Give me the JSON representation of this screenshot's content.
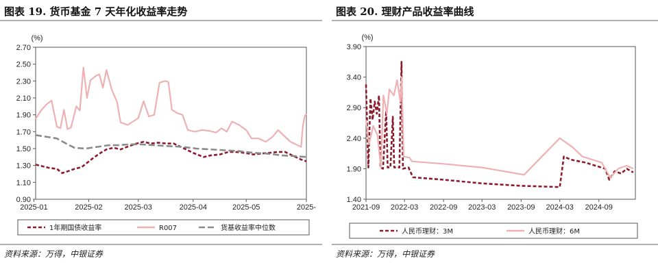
{
  "left": {
    "title": "图表 19. 货币基金 7 天年化收益率走势",
    "source": "资料来源：万得，中银证券",
    "chart_data": {
      "type": "line",
      "unit_label": "(%)",
      "ylim": [
        0.9,
        2.7
      ],
      "yticks": [
        "2.70",
        "2.50",
        "2.30",
        "2.10",
        "1.90",
        "1.70",
        "1.50",
        "1.30",
        "1.10",
        "0.90"
      ],
      "xlim": [
        "2025-01-02",
        "2025-06-04"
      ],
      "xticks": [
        "2025-01",
        "2025-02",
        "2025-03",
        "2025-04",
        "2025-05",
        "2025-"
      ],
      "legend_position": "bottom",
      "series": [
        {
          "name": "1年期国债收益率",
          "color": "#8b1a2b",
          "style": "dashed",
          "points": [
            [
              "2025-01-02",
              1.31
            ],
            [
              "2025-01-06",
              1.29
            ],
            [
              "2025-01-10",
              1.27
            ],
            [
              "2025-01-14",
              1.26
            ],
            [
              "2025-01-17",
              1.21
            ],
            [
              "2025-01-20",
              1.23
            ],
            [
              "2025-01-24",
              1.26
            ],
            [
              "2025-01-28",
              1.28
            ],
            [
              "2025-02-03",
              1.38
            ],
            [
              "2025-02-07",
              1.44
            ],
            [
              "2025-02-11",
              1.49
            ],
            [
              "2025-02-15",
              1.51
            ],
            [
              "2025-02-19",
              1.49
            ],
            [
              "2025-02-24",
              1.53
            ],
            [
              "2025-02-28",
              1.56
            ],
            [
              "2025-03-04",
              1.58
            ],
            [
              "2025-03-08",
              1.56
            ],
            [
              "2025-03-12",
              1.57
            ],
            [
              "2025-03-17",
              1.56
            ],
            [
              "2025-03-21",
              1.56
            ],
            [
              "2025-03-25",
              1.52
            ],
            [
              "2025-03-29",
              1.48
            ],
            [
              "2025-04-02",
              1.44
            ],
            [
              "2025-04-07",
              1.4
            ],
            [
              "2025-04-11",
              1.42
            ],
            [
              "2025-04-16",
              1.43
            ],
            [
              "2025-04-21",
              1.46
            ],
            [
              "2025-04-25",
              1.46
            ],
            [
              "2025-04-30",
              1.45
            ],
            [
              "2025-05-05",
              1.43
            ],
            [
              "2025-05-09",
              1.44
            ],
            [
              "2025-05-14",
              1.45
            ],
            [
              "2025-05-19",
              1.46
            ],
            [
              "2025-05-23",
              1.46
            ],
            [
              "2025-05-27",
              1.42
            ],
            [
              "2025-06-01",
              1.37
            ],
            [
              "2025-06-04",
              1.35
            ]
          ]
        },
        {
          "name": "R007",
          "color": "#eeb1b3",
          "style": "solid",
          "points": [
            [
              "2025-01-02",
              1.85
            ],
            [
              "2025-01-05",
              1.95
            ],
            [
              "2025-01-08",
              2.02
            ],
            [
              "2025-01-11",
              2.07
            ],
            [
              "2025-01-14",
              1.76
            ],
            [
              "2025-01-16",
              1.74
            ],
            [
              "2025-01-18",
              1.96
            ],
            [
              "2025-01-20",
              1.73
            ],
            [
              "2025-01-22",
              1.75
            ],
            [
              "2025-01-25",
              2.0
            ],
            [
              "2025-01-27",
              1.95
            ],
            [
              "2025-01-29",
              2.46
            ],
            [
              "2025-01-31",
              2.1
            ],
            [
              "2025-02-02",
              2.31
            ],
            [
              "2025-02-05",
              2.36
            ],
            [
              "2025-02-07",
              2.38
            ],
            [
              "2025-02-09",
              2.22
            ],
            [
              "2025-02-11",
              2.43
            ],
            [
              "2025-02-14",
              2.2
            ],
            [
              "2025-02-17",
              2.05
            ],
            [
              "2025-02-19",
              1.81
            ],
            [
              "2025-02-23",
              1.78
            ],
            [
              "2025-02-26",
              1.82
            ],
            [
              "2025-03-01",
              1.86
            ],
            [
              "2025-03-04",
              2.06
            ],
            [
              "2025-03-07",
              1.88
            ],
            [
              "2025-03-10",
              1.9
            ],
            [
              "2025-03-13",
              2.28
            ],
            [
              "2025-03-16",
              2.3
            ],
            [
              "2025-03-18",
              2.29
            ],
            [
              "2025-03-20",
              1.96
            ],
            [
              "2025-03-23",
              1.92
            ],
            [
              "2025-03-26",
              1.9
            ],
            [
              "2025-03-29",
              1.72
            ],
            [
              "2025-04-02",
              1.7
            ],
            [
              "2025-04-06",
              1.72
            ],
            [
              "2025-04-10",
              1.71
            ],
            [
              "2025-04-14",
              1.69
            ],
            [
              "2025-04-17",
              1.74
            ],
            [
              "2025-04-20",
              1.7
            ],
            [
              "2025-04-23",
              1.82
            ],
            [
              "2025-04-27",
              1.78
            ],
            [
              "2025-05-01",
              1.72
            ],
            [
              "2025-05-04",
              1.62
            ],
            [
              "2025-05-08",
              1.62
            ],
            [
              "2025-05-12",
              1.58
            ],
            [
              "2025-05-16",
              1.64
            ],
            [
              "2025-05-19",
              1.72
            ],
            [
              "2025-05-22",
              1.66
            ],
            [
              "2025-05-26",
              1.58
            ],
            [
              "2025-05-29",
              1.55
            ],
            [
              "2025-06-01",
              1.52
            ],
            [
              "2025-06-02",
              1.76
            ],
            [
              "2025-06-03",
              1.88
            ],
            [
              "2025-06-04",
              1.91
            ]
          ]
        },
        {
          "name": "货基收益率中位数",
          "color": "#8a8a8a",
          "style": "dashed",
          "points": [
            [
              "2025-01-02",
              1.66
            ],
            [
              "2025-01-08",
              1.64
            ],
            [
              "2025-01-14",
              1.62
            ],
            [
              "2025-01-20",
              1.55
            ],
            [
              "2025-01-24",
              1.51
            ],
            [
              "2025-01-30",
              1.5
            ],
            [
              "2025-02-06",
              1.52
            ],
            [
              "2025-02-12",
              1.54
            ],
            [
              "2025-02-18",
              1.54
            ],
            [
              "2025-02-24",
              1.55
            ],
            [
              "2025-03-02",
              1.55
            ],
            [
              "2025-03-10",
              1.54
            ],
            [
              "2025-03-18",
              1.53
            ],
            [
              "2025-03-26",
              1.52
            ],
            [
              "2025-04-03",
              1.5
            ],
            [
              "2025-04-11",
              1.49
            ],
            [
              "2025-04-19",
              1.48
            ],
            [
              "2025-04-27",
              1.47
            ],
            [
              "2025-05-05",
              1.45
            ],
            [
              "2025-05-13",
              1.44
            ],
            [
              "2025-05-21",
              1.42
            ],
            [
              "2025-05-29",
              1.41
            ],
            [
              "2025-06-04",
              1.4
            ]
          ]
        }
      ]
    }
  },
  "right": {
    "title": "图表 20. 理财产品收益率曲线",
    "source": "资料来源：万得，中银证券",
    "chart_data": {
      "type": "line",
      "unit_label": "(%)",
      "ylim": [
        1.4,
        3.9
      ],
      "yticks": [
        "3.90",
        "3.40",
        "2.90",
        "2.40",
        "1.90",
        "1.40"
      ],
      "xlim": [
        "2021-09-01",
        "2025-02-20"
      ],
      "xticks": [
        "2021-09",
        "2022-03",
        "2022-09",
        "2023-03",
        "2023-09",
        "2024-03",
        "2024-09"
      ],
      "legend_position": "bottom",
      "series": [
        {
          "name": "人民币理财：3M",
          "color": "#8b1a2b",
          "style": "dashed",
          "points": [
            [
              "2021-09-01",
              3.28
            ],
            [
              "2021-09-12",
              1.92
            ],
            [
              "2021-09-22",
              3.05
            ],
            [
              "2021-10-02",
              2.7
            ],
            [
              "2021-10-12",
              3.0
            ],
            [
              "2021-10-22",
              2.8
            ],
            [
              "2021-11-01",
              3.1
            ],
            [
              "2021-11-08",
              1.92
            ],
            [
              "2021-11-20",
              1.9
            ],
            [
              "2021-12-05",
              2.85
            ],
            [
              "2021-12-12",
              1.92
            ],
            [
              "2021-12-25",
              1.92
            ],
            [
              "2022-01-05",
              2.75
            ],
            [
              "2022-01-12",
              1.92
            ],
            [
              "2022-01-25",
              1.92
            ],
            [
              "2022-02-05",
              1.92
            ],
            [
              "2022-02-15",
              3.65
            ],
            [
              "2022-02-22",
              1.9
            ],
            [
              "2022-03-20",
              1.92
            ],
            [
              "2022-04-10",
              1.76
            ],
            [
              "2022-09-01",
              1.72
            ],
            [
              "2023-03-01",
              1.66
            ],
            [
              "2023-09-01",
              1.62
            ],
            [
              "2024-03-01",
              1.6
            ],
            [
              "2024-03-20",
              2.1
            ],
            [
              "2024-04-20",
              2.05
            ],
            [
              "2024-07-01",
              2.0
            ],
            [
              "2024-08-15",
              1.95
            ],
            [
              "2024-10-01",
              1.9
            ],
            [
              "2024-10-20",
              1.72
            ],
            [
              "2024-11-15",
              1.86
            ],
            [
              "2024-12-15",
              1.82
            ],
            [
              "2025-01-10",
              1.9
            ],
            [
              "2025-02-10",
              1.84
            ]
          ]
        },
        {
          "name": "人民币理财：6M",
          "color": "#eeb1b3",
          "style": "solid",
          "points": [
            [
              "2021-09-01",
              2.7
            ],
            [
              "2021-09-15",
              2.3
            ],
            [
              "2021-10-05",
              2.6
            ],
            [
              "2021-10-25",
              2.45
            ],
            [
              "2021-11-10",
              1.92
            ],
            [
              "2021-11-22",
              3.1
            ],
            [
              "2021-12-08",
              2.8
            ],
            [
              "2021-12-20",
              3.2
            ],
            [
              "2022-01-10",
              3.1
            ],
            [
              "2022-01-25",
              3.35
            ],
            [
              "2022-02-10",
              3.0
            ],
            [
              "2022-02-16",
              3.4
            ],
            [
              "2022-02-25",
              2.1
            ],
            [
              "2022-03-25",
              2.08
            ],
            [
              "2022-04-05",
              2.02
            ],
            [
              "2022-09-01",
              1.98
            ],
            [
              "2023-03-01",
              1.92
            ],
            [
              "2023-09-15",
              1.8
            ],
            [
              "2024-03-01",
              2.4
            ],
            [
              "2024-05-01",
              2.25
            ],
            [
              "2024-06-15",
              2.1
            ],
            [
              "2024-09-15",
              2.0
            ],
            [
              "2024-10-25",
              1.75
            ],
            [
              "2024-12-01",
              1.9
            ],
            [
              "2025-01-10",
              1.95
            ],
            [
              "2025-02-10",
              1.9
            ]
          ]
        }
      ]
    }
  }
}
